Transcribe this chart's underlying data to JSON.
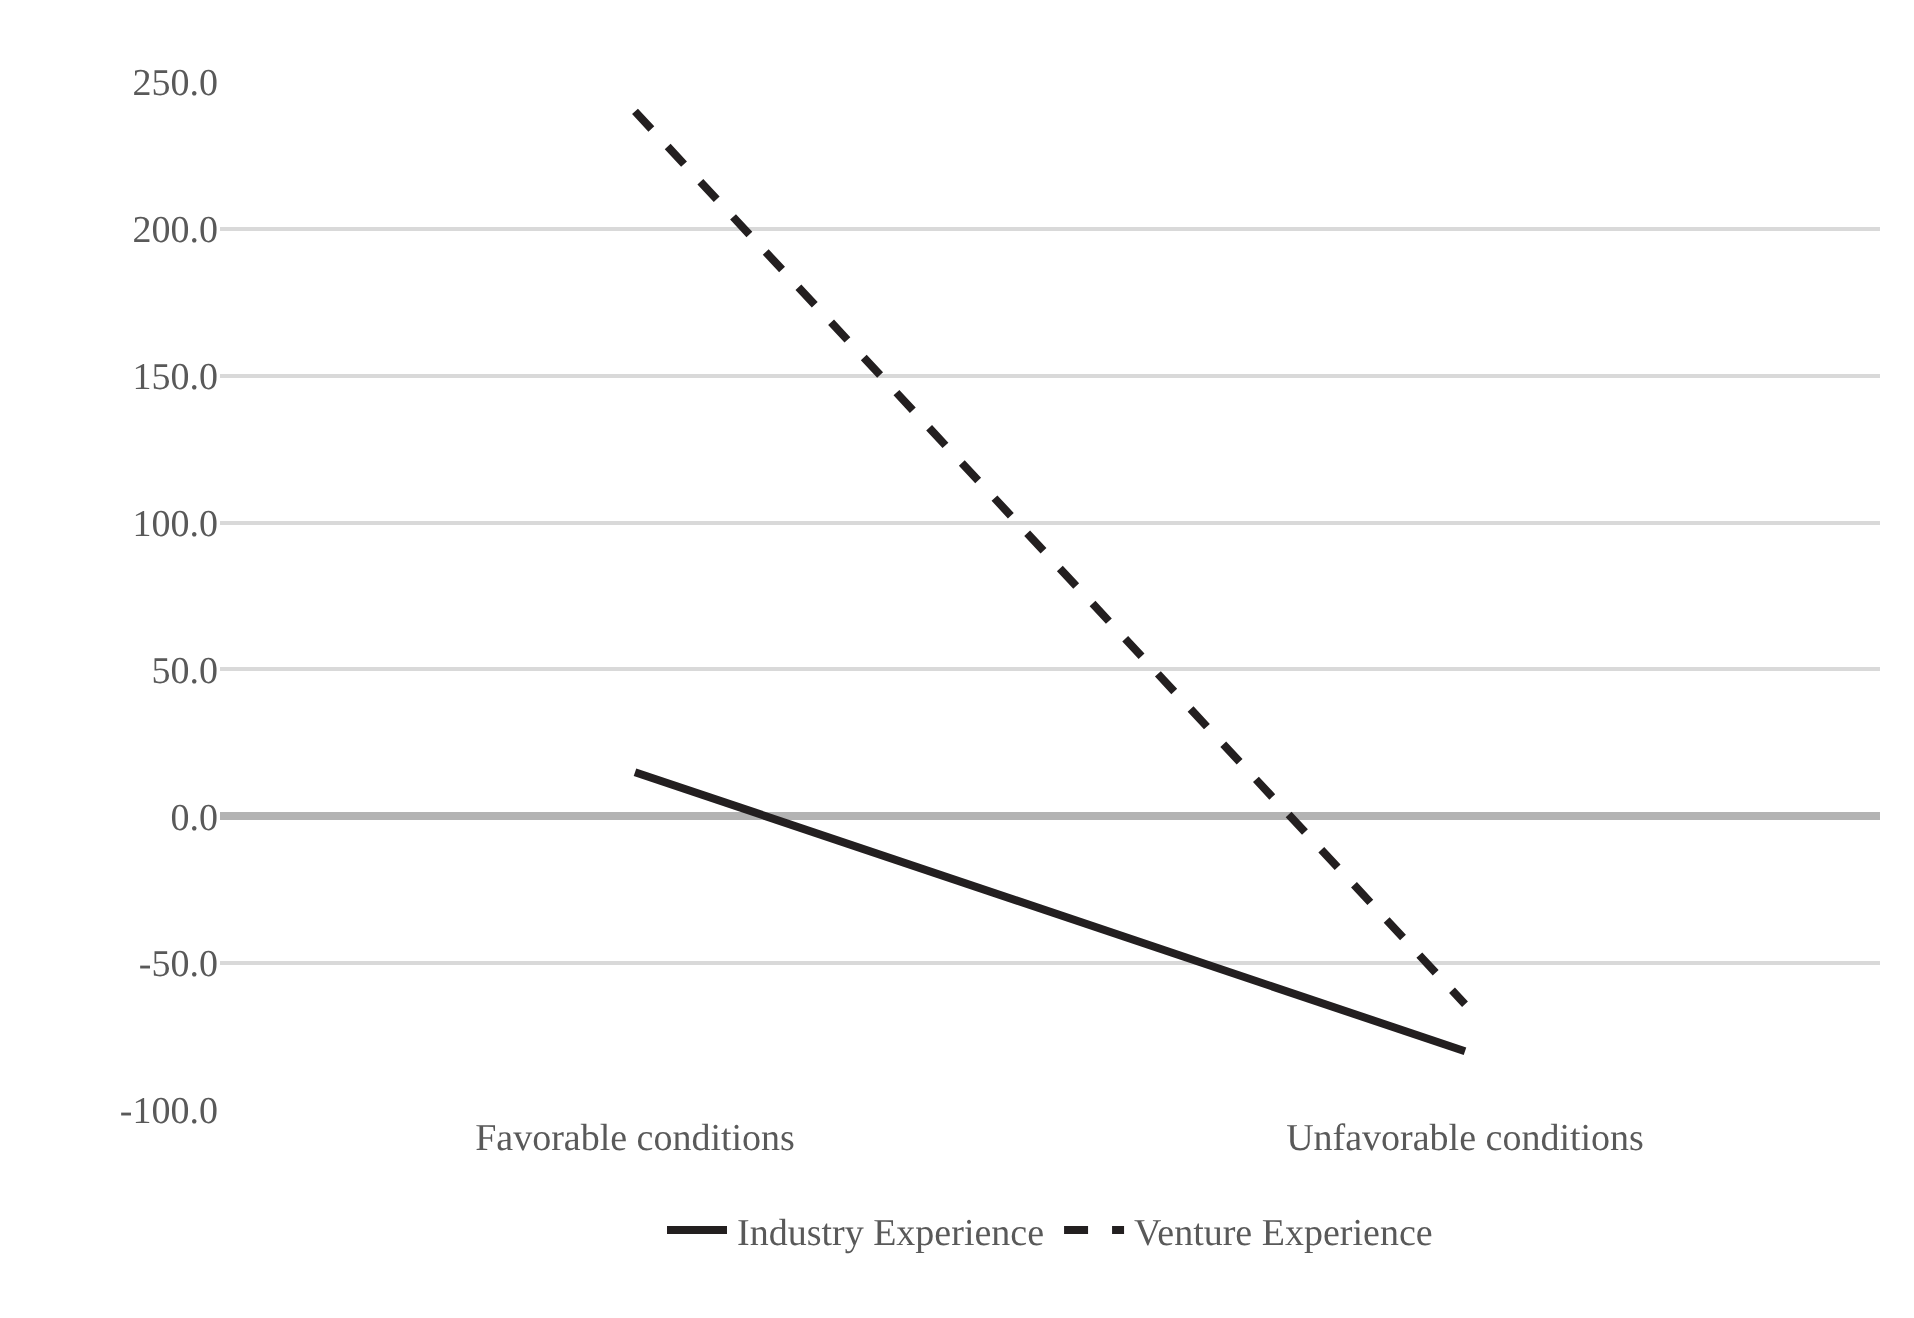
{
  "chart_data": {
    "type": "line",
    "categories": [
      "Favorable conditions",
      "Unfavorable conditions"
    ],
    "series": [
      {
        "name": "Industry Experience",
        "color": "#231f20",
        "values": [
          15,
          -80
        ],
        "line_style": "solid"
      },
      {
        "name": "Venture Experience",
        "color": "#231f20",
        "values": [
          240,
          -64
        ],
        "line_style": "dashed"
      }
    ],
    "ylim": [
      -100,
      250
    ],
    "yticks": [
      {
        "value": -100,
        "label": "-100.0"
      },
      {
        "value": -50,
        "label": "-50.0"
      },
      {
        "value": 0,
        "label": "0.0"
      },
      {
        "value": 50,
        "label": "50.0"
      },
      {
        "value": 100,
        "label": "100.0"
      },
      {
        "value": 150,
        "label": "150.0"
      },
      {
        "value": 200,
        "label": "200.0"
      },
      {
        "value": 250,
        "label": "250.0"
      }
    ],
    "grid": "y",
    "legend": "bottom",
    "marker": "none"
  }
}
